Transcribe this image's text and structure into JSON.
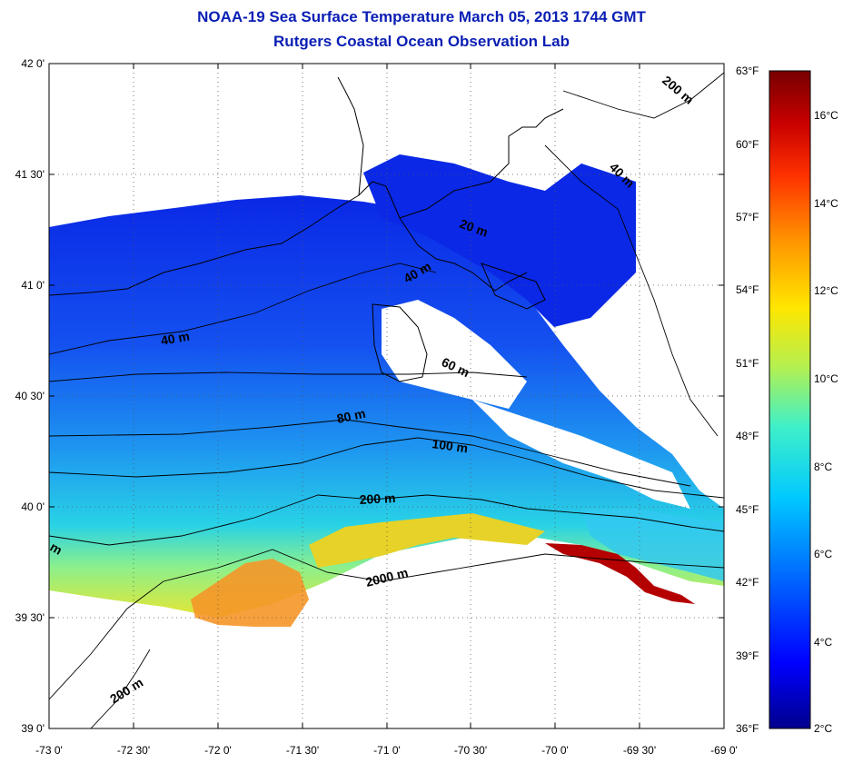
{
  "header": {
    "title": "NOAA-19 Sea Surface Temperature March 05, 2013 1744 GMT",
    "subtitle": "Rutgers Coastal Ocean Observation Lab"
  },
  "map": {
    "lat_labels": [
      "42 0'",
      "41 30'",
      "41 0'",
      "40 30'",
      "40 0'",
      "39 30'",
      "39 0'"
    ],
    "lon_labels": [
      "-73 0'",
      "-72 30'",
      "-72 0'",
      "-71 30'",
      "-71 0'",
      "-70 30'",
      "-70 0'",
      "-69 30'",
      "-69 0'"
    ],
    "contour_labels": [
      "40 m",
      "40 m",
      "60 m",
      "80 m",
      "100 m",
      "200 m",
      "2000 m",
      "200 m",
      "200 m",
      "40 m",
      "20 m",
      "m"
    ]
  },
  "colorbar": {
    "fahrenheit_labels": [
      "63°F",
      "60°F",
      "57°F",
      "54°F",
      "51°F",
      "48°F",
      "45°F",
      "42°F",
      "39°F",
      "36°F"
    ],
    "celsius_labels": [
      "16°C",
      "14°C",
      "12°C",
      "10°C",
      "8°C",
      "6°C",
      "4°C",
      "2°C"
    ]
  },
  "colors": {
    "title": "#0a1eb4",
    "frame": "#000000",
    "ramp": [
      "#00008c",
      "#0000ff",
      "#0060ff",
      "#00c8ff",
      "#40f0c8",
      "#b4f050",
      "#ffe600",
      "#ff9600",
      "#ff3200",
      "#c80000",
      "#780000"
    ]
  }
}
